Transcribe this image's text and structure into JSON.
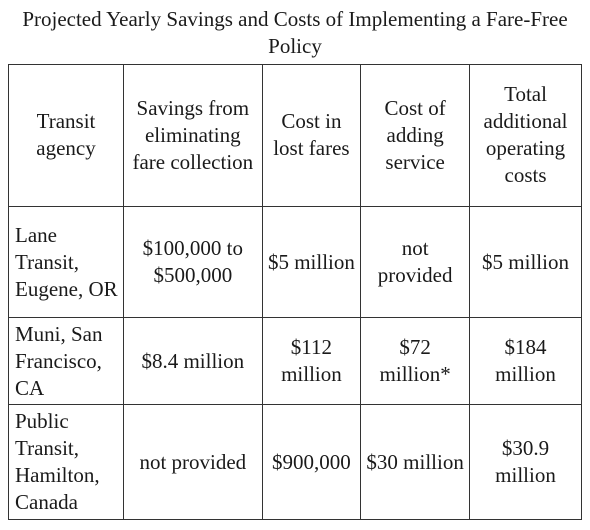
{
  "title": "Projected Yearly Savings and Costs of Implementing a Fare-Free Policy",
  "table": {
    "headers": [
      "Transit agency",
      "Savings from eliminating fare collection",
      "Cost in lost fares",
      "Cost of adding service",
      "Total additional operating costs"
    ],
    "rows": [
      {
        "agency": "Lane Transit, Eugene, OR",
        "savings": "$100,000 to $500,000",
        "lost_fares": "$5 million",
        "adding_service": "not provided",
        "total": "$5 million"
      },
      {
        "agency": "Muni, San Francisco, CA",
        "savings": "$8.4 million",
        "lost_fares": "$112 million",
        "adding_service": "$72 million*",
        "total": "$184 million"
      },
      {
        "agency": "Public Transit, Hamilton, Canada",
        "savings": "not provided",
        "lost_fares": "$900,000",
        "adding_service": "$30 million",
        "total": "$30.9 million"
      }
    ]
  }
}
